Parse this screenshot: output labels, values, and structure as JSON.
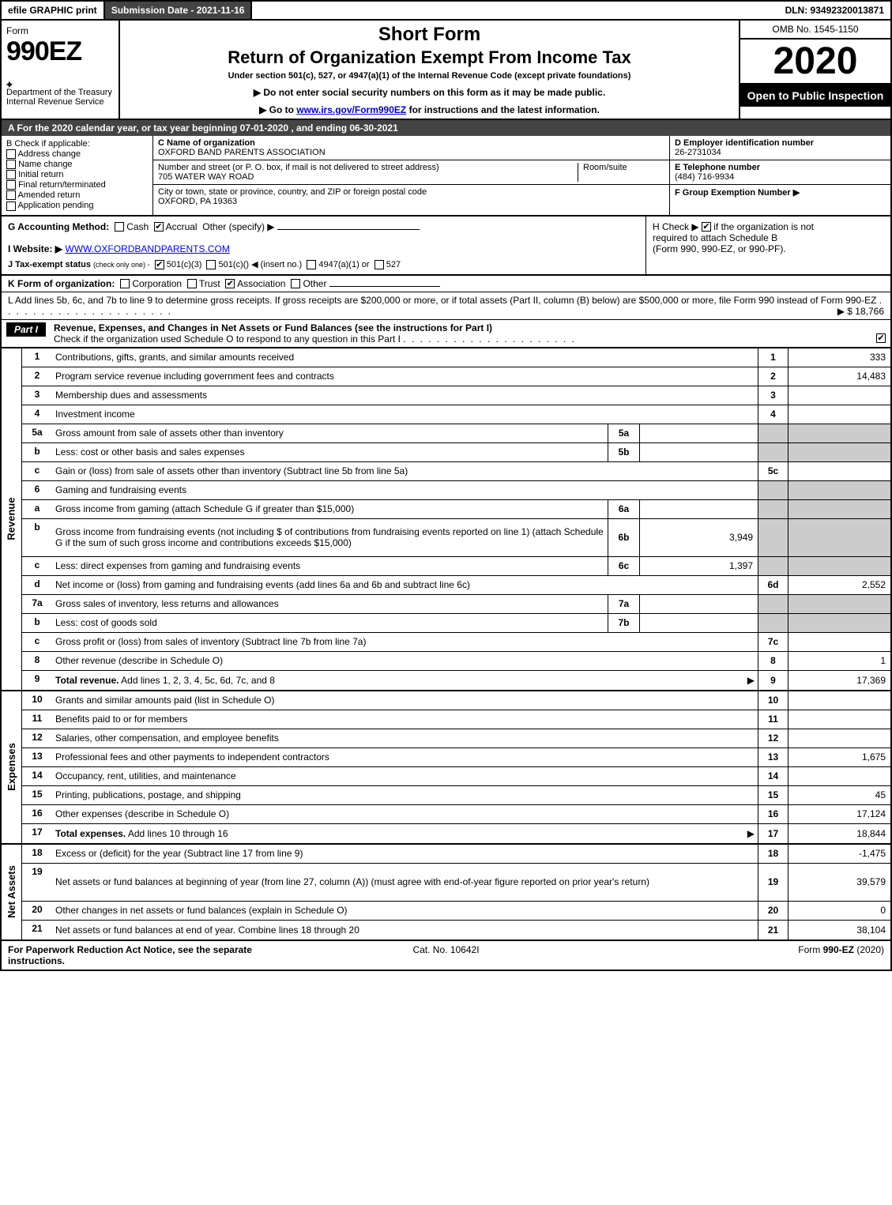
{
  "topbar": {
    "efile": "efile GRAPHIC print",
    "submission": "Submission Date - 2021-11-16",
    "dln": "DLN: 93492320013871"
  },
  "header": {
    "form_word": "Form",
    "form_num": "990EZ",
    "dept1": "Department of the Treasury",
    "dept2": "Internal Revenue Service",
    "title1": "Short Form",
    "title2": "Return of Organization Exempt From Income Tax",
    "subtitle": "Under section 501(c), 527, or 4947(a)(1) of the Internal Revenue Code (except private foundations)",
    "warn1": "▶ Do not enter social security numbers on this form as it may be made public.",
    "warn2_pre": "▶ Go to ",
    "warn2_link": "www.irs.gov/Form990EZ",
    "warn2_post": " for instructions and the latest information.",
    "omb": "OMB No. 1545-1150",
    "year": "2020",
    "open": "Open to Public Inspection"
  },
  "sectionA": "A For the 2020 calendar year, or tax year beginning 07-01-2020 , and ending 06-30-2021",
  "boxB": {
    "title": "B Check if applicable:",
    "opts": [
      "Address change",
      "Name change",
      "Initial return",
      "Final return/terminated",
      "Amended return",
      "Application pending"
    ]
  },
  "boxC": {
    "c_label": "C Name of organization",
    "c_value": "OXFORD BAND PARENTS ASSOCIATION",
    "addr_label": "Number and street (or P. O. box, if mail is not delivered to street address)",
    "addr_value": "705 WATER WAY ROAD",
    "room_label": "Room/suite",
    "city_label": "City or town, state or province, country, and ZIP or foreign postal code",
    "city_value": "OXFORD, PA  19363"
  },
  "boxD": {
    "label": "D Employer identification number",
    "value": "26-2731034"
  },
  "boxE": {
    "label": "E Telephone number",
    "value": "(484) 716-9934"
  },
  "boxF": {
    "label": "F Group Exemption Number  ▶"
  },
  "boxG": {
    "label": "G Accounting Method:",
    "cash": "Cash",
    "accrual": "Accrual",
    "other": "Other (specify) ▶"
  },
  "boxH": {
    "line1_pre": "H Check ▶ ",
    "line1_post": " if the organization is not",
    "line2": "required to attach Schedule B",
    "line3": "(Form 990, 990-EZ, or 990-PF)."
  },
  "boxI": {
    "label": "I Website: ▶",
    "value": "WWW.OXFORDBANDPARENTS.COM"
  },
  "boxJ": {
    "label": "J Tax-exempt status",
    "hint": "(check only one) -",
    "o1": "501(c)(3)",
    "o2_a": "501(c)(",
    "o2_b": ") ◀ (insert no.)",
    "o3": "4947(a)(1) or",
    "o4": "527"
  },
  "boxK": {
    "label": "K Form of organization:",
    "opts": [
      "Corporation",
      "Trust",
      "Association",
      "Other"
    ]
  },
  "boxL": {
    "text": "L Add lines 5b, 6c, and 7b to line 9 to determine gross receipts. If gross receipts are $200,000 or more, or if total assets (Part II, column (B) below) are $500,000 or more, file Form 990 instead of Form 990-EZ",
    "amount": "▶ $ 18,766"
  },
  "part1": {
    "tag": "Part I",
    "title": "Revenue, Expenses, and Changes in Net Assets or Fund Balances (see the instructions for Part I)",
    "check": "Check if the organization used Schedule O to respond to any question in this Part I"
  },
  "sideLabels": {
    "rev": "Revenue",
    "exp": "Expenses",
    "na": "Net Assets"
  },
  "revenue": [
    {
      "n": "1",
      "d": "Contributions, gifts, grants, and similar amounts received",
      "rn": "1",
      "rv": "333"
    },
    {
      "n": "2",
      "d": "Program service revenue including government fees and contracts",
      "rn": "2",
      "rv": "14,483"
    },
    {
      "n": "3",
      "d": "Membership dues and assessments",
      "rn": "3",
      "rv": ""
    },
    {
      "n": "4",
      "d": "Investment income",
      "rn": "4",
      "rv": ""
    },
    {
      "n": "5a",
      "d": "Gross amount from sale of assets other than inventory",
      "sc": "5a",
      "sv": "",
      "shade": true
    },
    {
      "n": "b",
      "d": "Less: cost or other basis and sales expenses",
      "sc": "5b",
      "sv": "",
      "shade": true
    },
    {
      "n": "c",
      "d": "Gain or (loss) from sale of assets other than inventory (Subtract line 5b from line 5a)",
      "rn": "5c",
      "rv": ""
    },
    {
      "n": "6",
      "d": "Gaming and fundraising events",
      "shade": true
    },
    {
      "n": "a",
      "d": "Gross income from gaming (attach Schedule G if greater than $15,000)",
      "sc": "6a",
      "sv": "",
      "shade": true
    },
    {
      "n": "b",
      "d": "Gross income from fundraising events (not including $                of contributions from fundraising events reported on line 1) (attach Schedule G if the sum of such gross income and contributions exceeds $15,000)",
      "sc": "6b",
      "sv": "3,949",
      "shade": true,
      "tall": true
    },
    {
      "n": "c",
      "d": "Less: direct expenses from gaming and fundraising events",
      "sc": "6c",
      "sv": "1,397",
      "shade": true
    },
    {
      "n": "d",
      "d": "Net income or (loss) from gaming and fundraising events (add lines 6a and 6b and subtract line 6c)",
      "rn": "6d",
      "rv": "2,552"
    },
    {
      "n": "7a",
      "d": "Gross sales of inventory, less returns and allowances",
      "sc": "7a",
      "sv": "",
      "shade": true
    },
    {
      "n": "b",
      "d": "Less: cost of goods sold",
      "sc": "7b",
      "sv": "",
      "shade": true
    },
    {
      "n": "c",
      "d": "Gross profit or (loss) from sales of inventory (Subtract line 7b from line 7a)",
      "rn": "7c",
      "rv": ""
    },
    {
      "n": "8",
      "d": "Other revenue (describe in Schedule O)",
      "rn": "8",
      "rv": "1"
    },
    {
      "n": "9",
      "d": "Total revenue. Add lines 1, 2, 3, 4, 5c, 6d, 7c, and 8",
      "rn": "9",
      "rv": "17,369",
      "bold": true,
      "arrow": true
    }
  ],
  "expenses": [
    {
      "n": "10",
      "d": "Grants and similar amounts paid (list in Schedule O)",
      "rn": "10",
      "rv": ""
    },
    {
      "n": "11",
      "d": "Benefits paid to or for members",
      "rn": "11",
      "rv": ""
    },
    {
      "n": "12",
      "d": "Salaries, other compensation, and employee benefits",
      "rn": "12",
      "rv": ""
    },
    {
      "n": "13",
      "d": "Professional fees and other payments to independent contractors",
      "rn": "13",
      "rv": "1,675"
    },
    {
      "n": "14",
      "d": "Occupancy, rent, utilities, and maintenance",
      "rn": "14",
      "rv": ""
    },
    {
      "n": "15",
      "d": "Printing, publications, postage, and shipping",
      "rn": "15",
      "rv": "45"
    },
    {
      "n": "16",
      "d": "Other expenses (describe in Schedule O)",
      "rn": "16",
      "rv": "17,124"
    },
    {
      "n": "17",
      "d": "Total expenses. Add lines 10 through 16",
      "rn": "17",
      "rv": "18,844",
      "bold": true,
      "arrow": true
    }
  ],
  "netassets": [
    {
      "n": "18",
      "d": "Excess or (deficit) for the year (Subtract line 17 from line 9)",
      "rn": "18",
      "rv": "-1,475"
    },
    {
      "n": "19",
      "d": "Net assets or fund balances at beginning of year (from line 27, column (A)) (must agree with end-of-year figure reported on prior year's return)",
      "rn": "19",
      "rv": "39,579",
      "tall": true
    },
    {
      "n": "20",
      "d": "Other changes in net assets or fund balances (explain in Schedule O)",
      "rn": "20",
      "rv": "0"
    },
    {
      "n": "21",
      "d": "Net assets or fund balances at end of year. Combine lines 18 through 20",
      "rn": "21",
      "rv": "38,104"
    }
  ],
  "footer": {
    "left": "For Paperwork Reduction Act Notice, see the separate instructions.",
    "mid": "Cat. No. 10642I",
    "right_a": "Form ",
    "right_b": "990-EZ",
    "right_c": " (2020)"
  }
}
